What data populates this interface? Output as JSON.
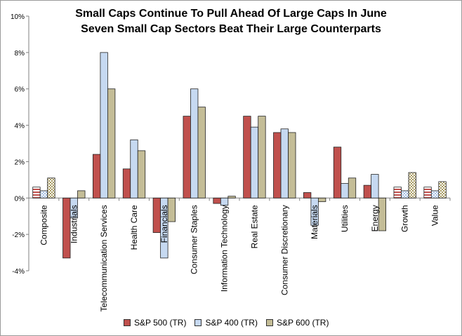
{
  "chart_data": {
    "type": "bar",
    "title": "Small Caps Continue To Pull Ahead Of Large Caps In June",
    "subtitle": "Seven Small Cap Sectors Beat Their Large Counterparts",
    "categories": [
      "Composite",
      "Industrials",
      "Telecommunication Services",
      "Health Care",
      "Financials",
      "Consumer Staples",
      "Information Technology",
      "Real Estate",
      "Consumer Discretionary",
      "Materials",
      "Utilities",
      "Energy",
      "Growth",
      "Value"
    ],
    "series": [
      {
        "name": "S&P 500 (TR)",
        "color": "#c0504d",
        "values": [
          0.6,
          -3.3,
          2.4,
          1.6,
          -1.9,
          4.5,
          -0.3,
          4.5,
          3.6,
          0.3,
          2.8,
          0.7,
          0.6,
          0.6
        ]
      },
      {
        "name": "S&P 400 (TR)",
        "color": "#c6d9f1",
        "values": [
          0.4,
          -1.1,
          8.0,
          3.2,
          -3.3,
          6.0,
          -0.4,
          3.9,
          3.8,
          -1.5,
          0.8,
          1.3,
          0.4,
          0.4
        ]
      },
      {
        "name": "S&P 600 (TR)",
        "color": "#c4bd97",
        "values": [
          1.1,
          0.4,
          6.0,
          2.6,
          -1.3,
          5.0,
          0.1,
          4.5,
          3.6,
          -0.2,
          1.1,
          -1.8,
          1.4,
          0.9
        ]
      }
    ],
    "patterned_categories": [
      "Composite",
      "Growth",
      "Value"
    ],
    "ylim": [
      -4,
      10
    ],
    "yticks": [
      -4,
      -2,
      0,
      2,
      4,
      6,
      8,
      10
    ],
    "ytick_labels": [
      "-4%",
      "-2%",
      "0%",
      "2%",
      "4%",
      "6%",
      "8%",
      "10%"
    ],
    "xlabel": "",
    "ylabel": "",
    "grid": false,
    "legend_position": "bottom"
  }
}
